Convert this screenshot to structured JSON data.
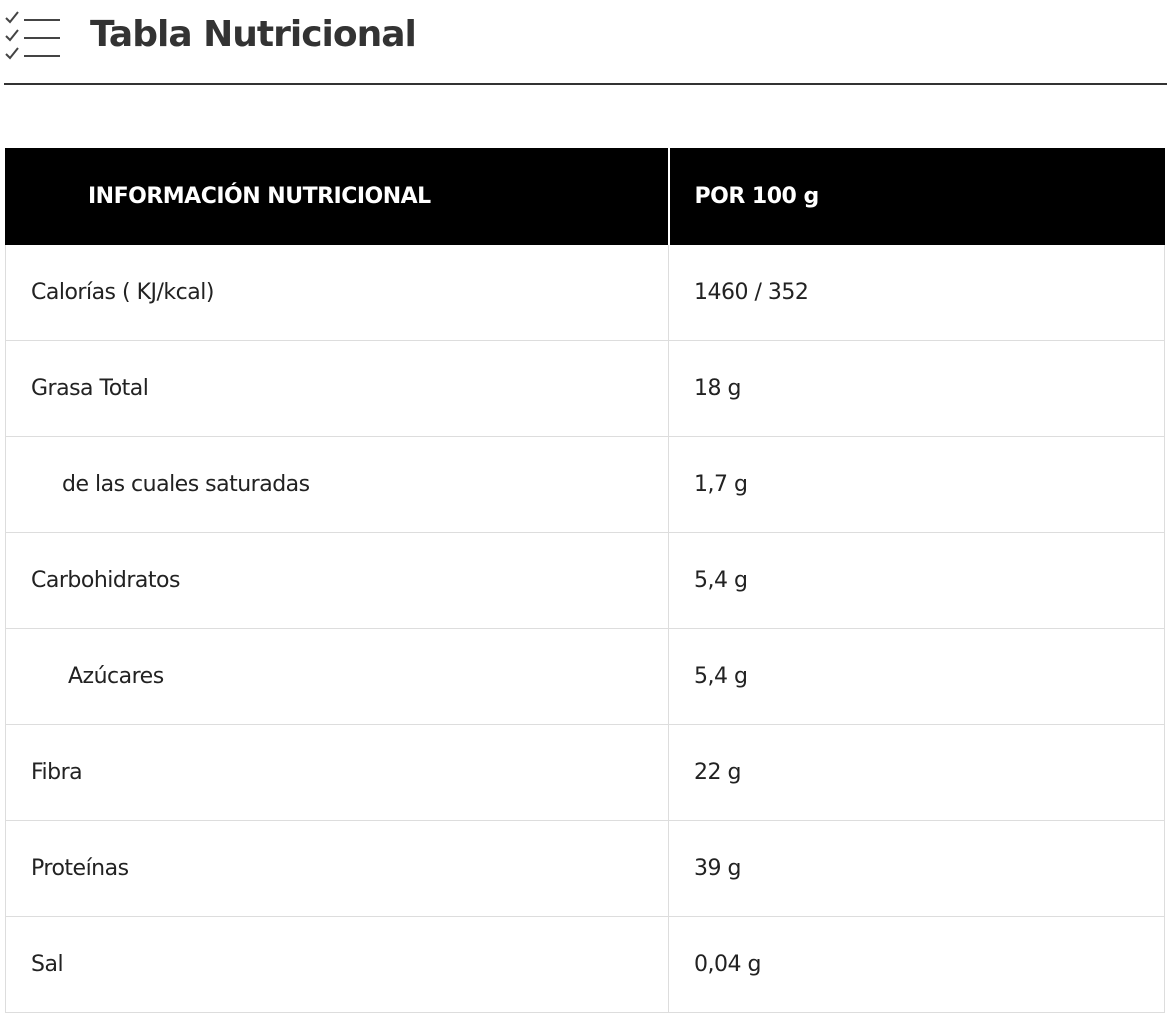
{
  "header": {
    "title": "Tabla Nutricional"
  },
  "table": {
    "columns": [
      "INFORMACIÓN NUTRICIONAL",
      "POR 100 g"
    ],
    "rows": [
      [
        "Calorías ( KJ/kcal)",
        "1460 / 352"
      ],
      [
        "Grasa Total",
        "18 g"
      ],
      [
        "de las cuales saturadas",
        "1,7 g"
      ],
      [
        "Carbohidratos",
        "5,4 g"
      ],
      [
        "Azúcares",
        "5,4 g"
      ],
      [
        "Fibra",
        "22 g"
      ],
      [
        "Proteínas",
        "39 g"
      ],
      [
        "Sal",
        "0,04 g"
      ]
    ]
  }
}
